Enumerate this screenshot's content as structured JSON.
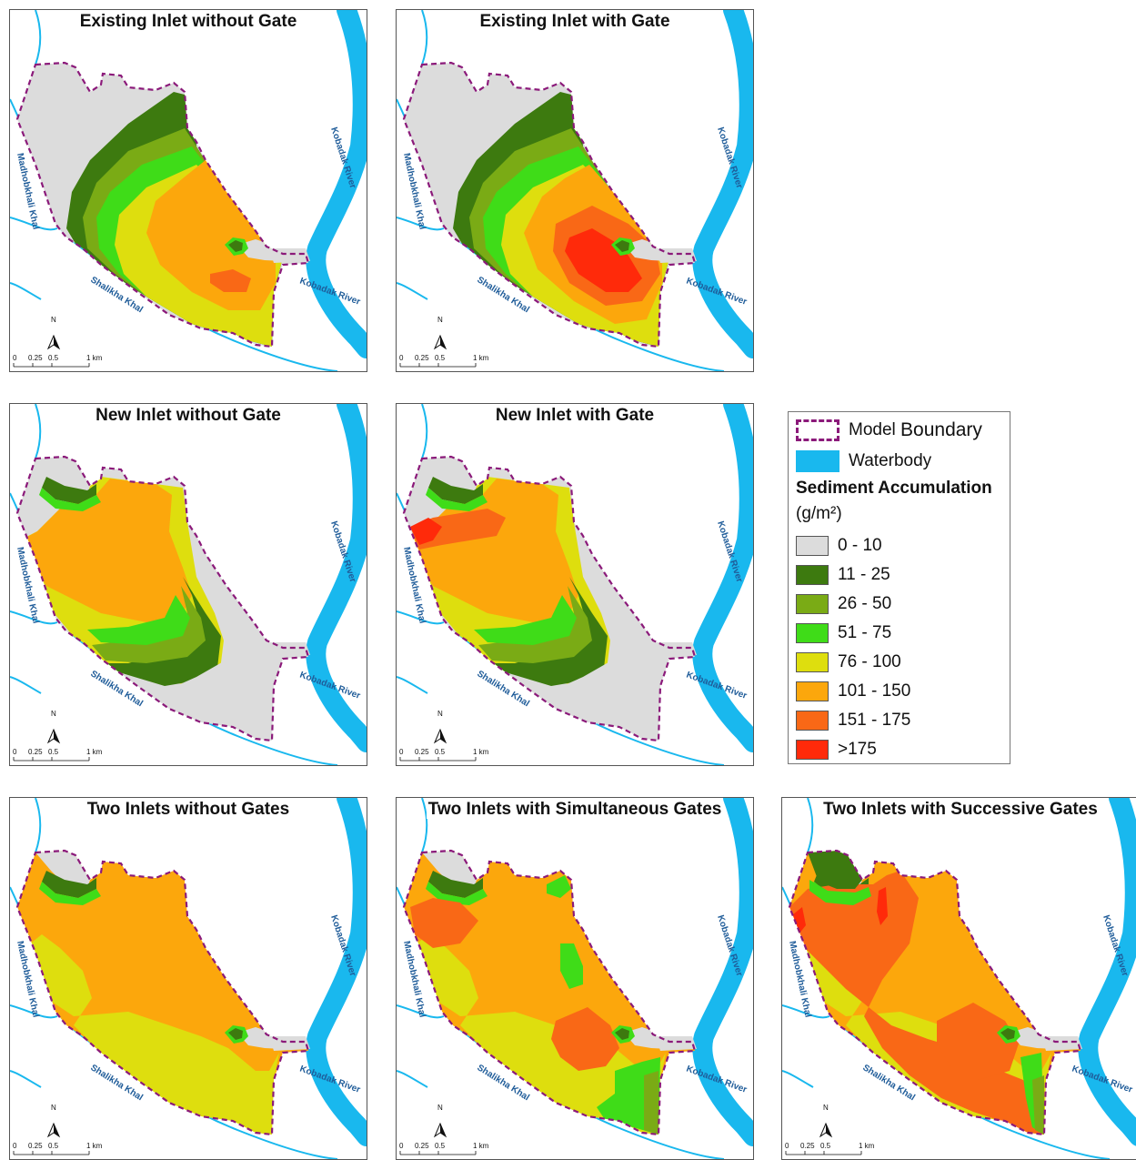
{
  "panels": [
    {
      "title": "Existing Inlet without Gate"
    },
    {
      "title": "Existing Inlet with Gate"
    },
    {
      "title": "New Inlet without Gate"
    },
    {
      "title": "New Inlet with Gate"
    },
    {
      "title": "Two Inlets without Gates"
    },
    {
      "title": "Two Inlets with Simultaneous Gates"
    },
    {
      "title": "Two Inlets with Successive Gates"
    }
  ],
  "map_labels": {
    "north": "N",
    "river_east": "Kobadak River",
    "river_se": "Kobadak River",
    "khal_west": "Madhobkhali Khal",
    "khal_south": "Shalikha Khal",
    "scale_0": "0",
    "scale_1": "0.25",
    "scale_2": "0.5",
    "scale_3": "1 km"
  },
  "legend": {
    "boundary_a": "Model",
    "boundary_b": "Boundary",
    "waterbody": "Waterbody",
    "heading": "Sediment Accumulation",
    "unit": "(g/m²)",
    "classes": [
      {
        "label": "0 - 10",
        "color": "#dcdcdc"
      },
      {
        "label": "11 - 25",
        "color": "#3d7a0f"
      },
      {
        "label": "26 - 50",
        "color": "#7aab15"
      },
      {
        "label": "51 - 75",
        "color": "#3fdc18"
      },
      {
        "label": "76 - 100",
        "color": "#dede0e"
      },
      {
        "label": "101 - 150",
        "color": "#fca70c"
      },
      {
        "label": "151 - 175",
        "color": "#f96816"
      },
      {
        "label": ">175",
        "color": "#ff2a0a"
      }
    ]
  },
  "colors": {
    "water": "#19b8ee",
    "boundary": "#8b1a7a"
  }
}
